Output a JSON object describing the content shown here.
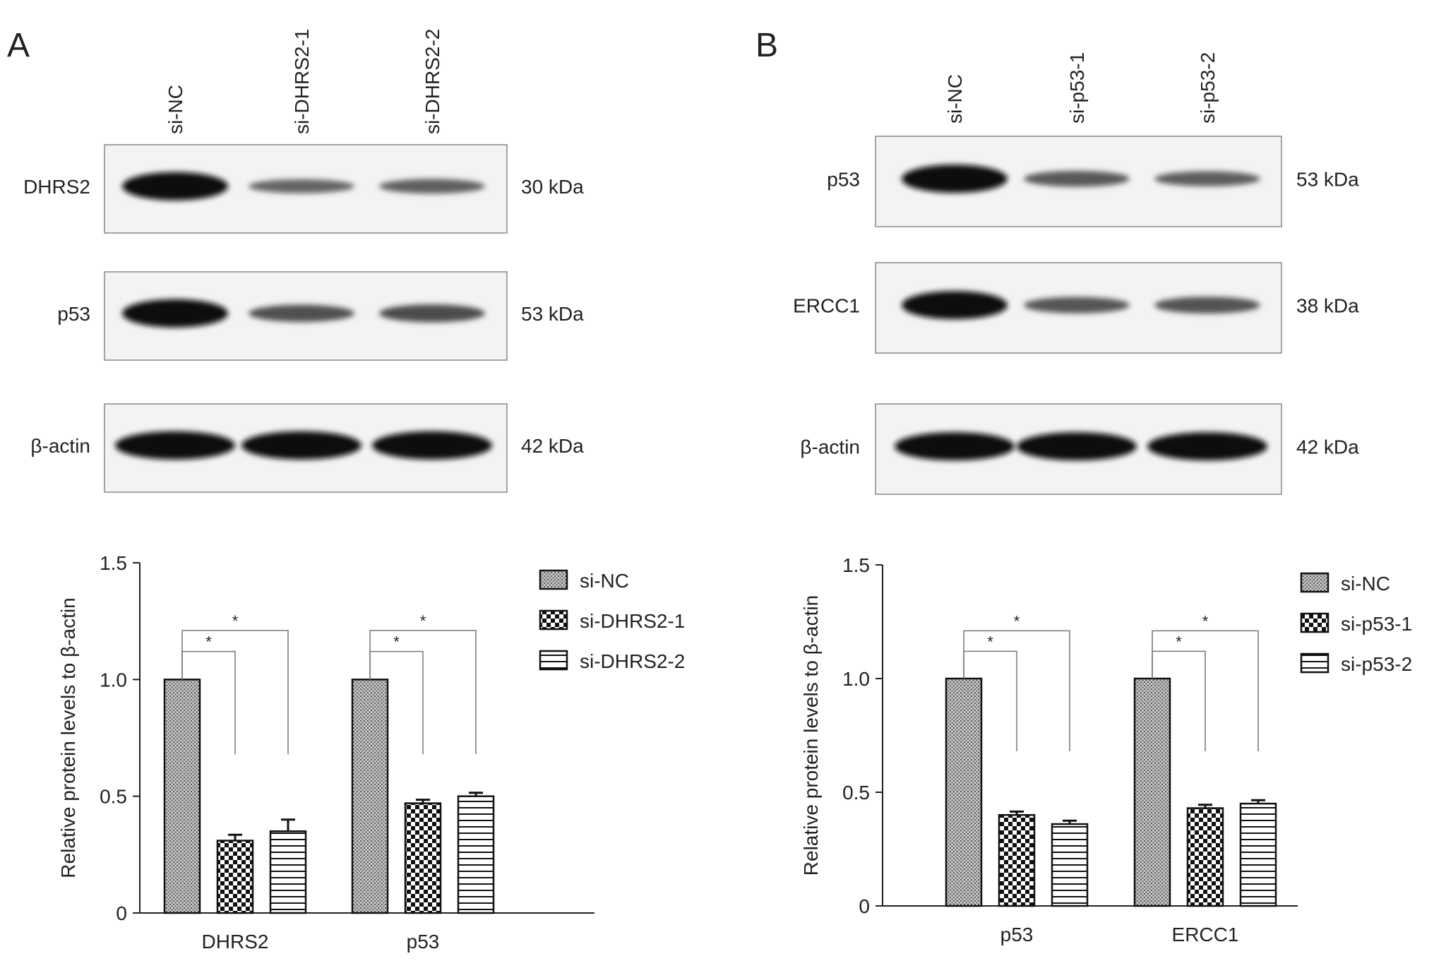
{
  "panels": [
    {
      "label": "A",
      "blot": {
        "lanes": [
          "si-NC",
          "si-DHRS2-1",
          "si-DHRS2-2"
        ],
        "rows": [
          {
            "protein": "DHRS2",
            "size": "30 kDa",
            "intensity": [
              1.0,
              0.33,
              0.36
            ]
          },
          {
            "protein": "p53",
            "size": "53 kDa",
            "intensity": [
              1.0,
              0.48,
              0.51
            ]
          },
          {
            "protein": "β-actin",
            "size": "42 kDa",
            "intensity": [
              1.0,
              1.0,
              1.0
            ]
          }
        ]
      }
    },
    {
      "label": "B",
      "blot": {
        "lanes": [
          "si-NC",
          "si-p53-1",
          "si-p53-2"
        ],
        "rows": [
          {
            "protein": "p53",
            "size": "53 kDa",
            "intensity": [
              1.0,
              0.42,
              0.38
            ]
          },
          {
            "protein": "ERCC1",
            "size": "38 kDa",
            "intensity": [
              1.0,
              0.44,
              0.46
            ]
          },
          {
            "protein": "β-actin",
            "size": "42 kDa",
            "intensity": [
              1.0,
              1.0,
              1.0
            ]
          }
        ]
      }
    }
  ],
  "chart_data": [
    {
      "type": "bar",
      "panel": "A",
      "ylabel": "Relative protein levels to β-actin",
      "ylim": [
        0,
        1.5
      ],
      "yticks": [
        "0",
        "0.5",
        "1.0",
        "1.5"
      ],
      "categories": [
        "DHRS2",
        "p53"
      ],
      "series": [
        {
          "name": "si-NC",
          "pattern": "dots",
          "values": [
            1.0,
            1.0
          ],
          "errors": [
            0,
            0
          ]
        },
        {
          "name": "si-DHRS2-1",
          "pattern": "checker",
          "values": [
            0.31,
            0.47
          ],
          "errors": [
            0.025,
            0.015
          ]
        },
        {
          "name": "si-DHRS2-2",
          "pattern": "stripes",
          "values": [
            0.35,
            0.5
          ],
          "errors": [
            0.05,
            0.015
          ]
        }
      ],
      "significance": [
        "*",
        "*",
        "*",
        "*"
      ],
      "legend": "right"
    },
    {
      "type": "bar",
      "panel": "B",
      "ylabel": "Relative protein levels to β-actin",
      "ylim": [
        0,
        1.5
      ],
      "yticks": [
        "0",
        "0.5",
        "1.0",
        "1.5"
      ],
      "categories": [
        "p53",
        "ERCC1"
      ],
      "series": [
        {
          "name": "si-NC",
          "pattern": "dots",
          "values": [
            1.0,
            1.0
          ],
          "errors": [
            0,
            0
          ]
        },
        {
          "name": "si-p53-1",
          "pattern": "checker",
          "values": [
            0.4,
            0.43
          ],
          "errors": [
            0.015,
            0.015
          ]
        },
        {
          "name": "si-p53-2",
          "pattern": "stripes",
          "values": [
            0.36,
            0.45
          ],
          "errors": [
            0.015,
            0.015
          ]
        }
      ],
      "significance": [
        "*",
        "*",
        "*",
        "*"
      ],
      "legend": "right"
    }
  ]
}
